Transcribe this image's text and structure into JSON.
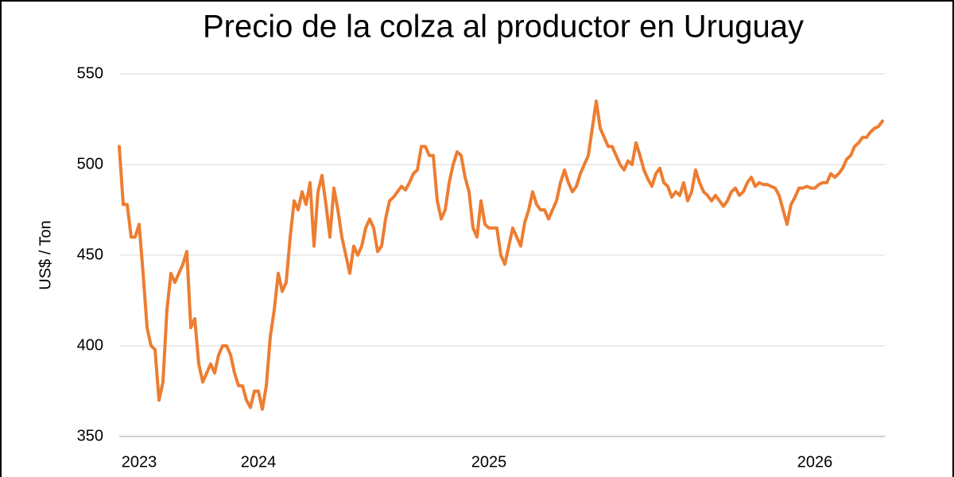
{
  "chart_data": {
    "type": "line",
    "title": "Precio de la colza al productor en Uruguay",
    "y_label": "US$ / Ton",
    "categories": [
      null,
      null,
      null,
      null,
      null,
      "2023",
      null,
      null,
      null,
      null,
      null,
      null,
      null,
      null,
      null,
      null,
      null,
      null,
      null,
      null,
      null,
      null,
      null,
      null,
      null,
      null,
      null,
      null,
      null,
      null,
      null,
      null,
      null,
      null,
      null,
      "2024",
      null,
      null,
      null,
      null,
      null,
      null,
      null,
      null,
      null,
      null,
      null,
      null,
      null,
      null,
      null,
      null,
      null,
      null,
      null,
      null,
      null,
      null,
      null,
      null,
      null,
      null,
      null,
      null,
      null,
      null,
      null,
      null,
      null,
      null,
      null,
      null,
      null,
      null,
      null,
      null,
      null,
      null,
      null,
      null,
      null,
      null,
      null,
      null,
      null,
      null,
      null,
      null,
      null,
      null,
      null,
      null,
      null,
      "2025",
      null,
      null,
      null,
      null,
      null,
      null,
      null,
      null,
      null,
      null,
      null,
      null,
      null,
      null,
      null,
      null,
      null,
      null,
      null,
      null,
      null,
      null,
      null,
      null,
      null,
      null,
      null,
      null,
      null,
      null,
      null,
      null,
      null,
      null,
      null,
      null,
      null,
      null,
      null,
      null,
      null,
      null,
      null,
      null,
      null,
      null,
      null,
      null,
      null,
      null,
      null,
      null,
      null,
      null,
      null,
      null,
      null,
      null,
      null,
      null,
      null,
      null,
      null,
      null,
      null,
      null,
      null,
      null,
      null,
      null,
      null,
      null,
      null,
      null,
      null,
      null,
      null,
      null,
      null,
      null,
      null,
      "2026",
      null,
      null,
      null,
      null,
      null,
      null,
      null,
      null,
      null,
      null,
      null,
      null,
      null,
      null,
      null,
      null,
      null
    ],
    "series": [
      {
        "name": "Precio",
        "color": "#ed7d31",
        "values": [
          510,
          478,
          478,
          460,
          460,
          467,
          440,
          410,
          400,
          398,
          370,
          380,
          420,
          440,
          435,
          440,
          445,
          452,
          410,
          415,
          390,
          380,
          385,
          390,
          385,
          395,
          400,
          400,
          395,
          385,
          378,
          378,
          370,
          366,
          375,
          375,
          365,
          378,
          405,
          420,
          440,
          430,
          435,
          460,
          480,
          475,
          485,
          478,
          490,
          455,
          485,
          494,
          478,
          460,
          487,
          475,
          460,
          450,
          440,
          455,
          450,
          455,
          465,
          470,
          465,
          452,
          455,
          470,
          480,
          482,
          485,
          488,
          486,
          490,
          495,
          497,
          510,
          510,
          505,
          505,
          480,
          470,
          475,
          490,
          500,
          507,
          505,
          493,
          485,
          465,
          460,
          480,
          467,
          465,
          465,
          465,
          450,
          445,
          455,
          465,
          460,
          455,
          468,
          475,
          485,
          478,
          475,
          475,
          470,
          475,
          480,
          490,
          497,
          490,
          485,
          488,
          495,
          500,
          505,
          520,
          535,
          520,
          515,
          510,
          510,
          505,
          500,
          497,
          502,
          500,
          512,
          505,
          497,
          492,
          488,
          495,
          498,
          490,
          488,
          482,
          485,
          483,
          490,
          480,
          485,
          497,
          490,
          485,
          483,
          480,
          483,
          480,
          477,
          480,
          485,
          487,
          483,
          485,
          490,
          493,
          488,
          490,
          489,
          489,
          488,
          487,
          483,
          475,
          467,
          478,
          482,
          487,
          487,
          488,
          487,
          487,
          489,
          490,
          490,
          495,
          493,
          495,
          498,
          503,
          505,
          510,
          512,
          515,
          515,
          518,
          520,
          521,
          524
        ]
      }
    ],
    "ylim": [
      350,
      550
    ],
    "yticks": [
      350,
      400,
      450,
      500,
      550
    ],
    "grid": true
  }
}
